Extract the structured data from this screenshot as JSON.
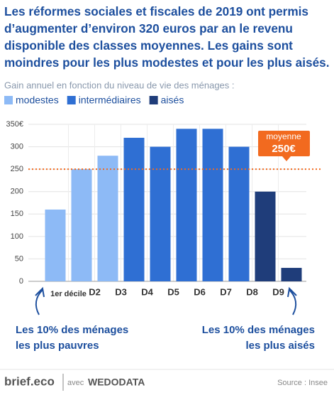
{
  "chart_data": {
    "type": "bar",
    "title": "Les réformes sociales et fiscales de 2019 ont permis d’augmenter d’environ 320 euros par an le revenu disponible des classes moyennes. Les gains sont moindres pour les plus modestes et pour les plus aisés.",
    "subtitle": "Gain annuel en fonction du niveau de vie des ménages :",
    "boundary_labels": [
      "1er décile",
      "D2",
      "D3",
      "D4",
      "D5",
      "D6",
      "D7",
      "D8",
      "D9"
    ],
    "series": [
      {
        "name": "modestes",
        "color": "#8dbaf6",
        "values": [
          160,
          250,
          280,
          null,
          null,
          null,
          null,
          null,
          null,
          null
        ]
      },
      {
        "name": "intermédiaires",
        "color": "#2f6fd3",
        "values": [
          null,
          null,
          null,
          320,
          300,
          340,
          340,
          300,
          null,
          null
        ]
      },
      {
        "name": "aisés",
        "color": "#1f3d7a",
        "values": [
          null,
          null,
          null,
          null,
          null,
          null,
          null,
          null,
          200,
          30
        ]
      }
    ],
    "ylim": [
      0,
      350
    ],
    "yticks": [
      0,
      50,
      100,
      150,
      200,
      250,
      {
        "value": 350,
        "label": "350€"
      }
    ],
    "yticks_extra": [
      300
    ],
    "grid": true,
    "average": {
      "label": "moyenne",
      "value": 250,
      "value_label": "250€",
      "color": "#f26a1f"
    },
    "annotations": [
      "Les 10% des ménages les plus pauvres",
      "Les 10% des ménages les plus aisés"
    ],
    "footer": {
      "brand": "brief.eco",
      "with": "avec",
      "partner": "WEDODATA",
      "source": "Source : Insee"
    }
  }
}
